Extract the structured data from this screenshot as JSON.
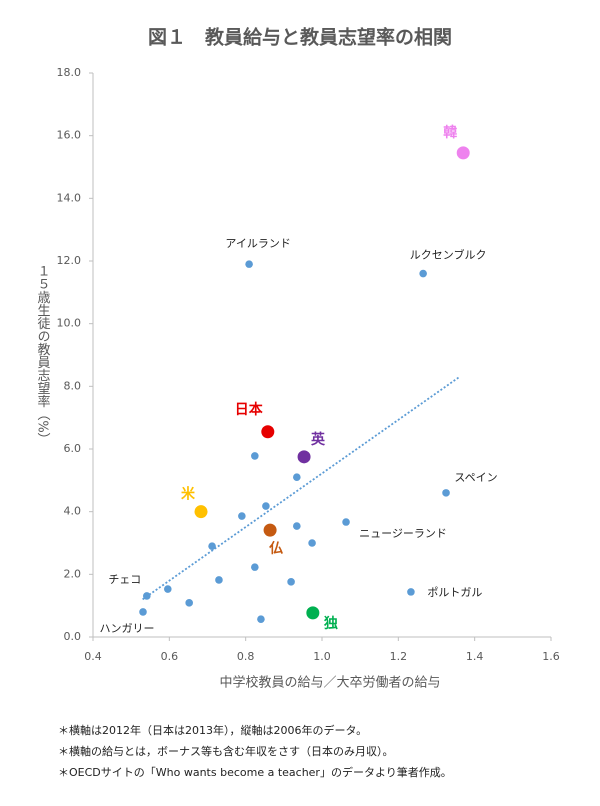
{
  "chart_data": {
    "type": "scatter",
    "title": "図１　教員給与と教員志望率の相関",
    "x_label": "中学校教員の給与／大卒労働者の給与",
    "y_label": "１５歳生徒の教員志望率（%）",
    "xlim": [
      0.4,
      1.6
    ],
    "xticks": [
      0.4,
      0.6,
      0.8,
      {
        "value": 1,
        "label": "1.0"
      },
      1.2,
      1.4,
      1.6
    ],
    "ylim": [
      0,
      18
    ],
    "yticks": [
      {
        "value": 0,
        "label": "0.0"
      },
      {
        "value": 2,
        "label": "2.0"
      },
      {
        "value": 4,
        "label": "4.0"
      },
      {
        "value": 6,
        "label": "6.0"
      },
      {
        "value": 8,
        "label": "8.0"
      },
      {
        "value": 10,
        "label": "10.0"
      },
      {
        "value": 12,
        "label": "12.0"
      },
      {
        "value": 14,
        "label": "14.0"
      },
      {
        "value": 16,
        "label": "16.0"
      },
      {
        "value": 18,
        "label": "18.0"
      }
    ],
    "grid": false,
    "color": "#5b9bd5",
    "points": [
      {
        "x": 1.37,
        "y": 15.45,
        "label": "韓",
        "color": "#ee82ee",
        "highlight": true
      },
      {
        "x": 1.265,
        "y": 11.6,
        "label": "ルクセンブルク"
      },
      {
        "x": 0.809,
        "y": 11.9,
        "label": "アイルランド"
      },
      {
        "x": 0.858,
        "y": 6.55,
        "label": "日本",
        "color": "#e60000",
        "highlight": true
      },
      {
        "x": 0.953,
        "y": 5.75,
        "label": "英",
        "color": "#7030a0",
        "highlight": true
      },
      {
        "x": 0.824,
        "y": 5.78
      },
      {
        "x": 0.934,
        "y": 5.1
      },
      {
        "x": 1.325,
        "y": 4.6,
        "label": "スペイン"
      },
      {
        "x": 0.683,
        "y": 4.0,
        "label": "米",
        "color": "#ffc000",
        "highlight": true
      },
      {
        "x": 0.853,
        "y": 4.18
      },
      {
        "x": 0.79,
        "y": 3.86
      },
      {
        "x": 1.063,
        "y": 3.67,
        "label": "ニュージーランド"
      },
      {
        "x": 0.934,
        "y": 3.54
      },
      {
        "x": 0.864,
        "y": 3.41,
        "label": "仏",
        "color": "#c55a11",
        "highlight": true
      },
      {
        "x": 0.974,
        "y": 3.0
      },
      {
        "x": 0.712,
        "y": 2.9
      },
      {
        "x": 0.824,
        "y": 2.23
      },
      {
        "x": 0.73,
        "y": 1.82
      },
      {
        "x": 0.919,
        "y": 1.76
      },
      {
        "x": 0.596,
        "y": 1.53
      },
      {
        "x": 1.233,
        "y": 1.44,
        "label": "ポルトガル"
      },
      {
        "x": 0.541,
        "y": 1.31,
        "label": "チェコ"
      },
      {
        "x": 0.652,
        "y": 1.09
      },
      {
        "x": 0.531,
        "y": 0.8,
        "label": "ハンガリー"
      },
      {
        "x": 0.84,
        "y": 0.57
      },
      {
        "x": 0.976,
        "y": 0.77,
        "label": "独",
        "color": "#00b050",
        "highlight": true
      }
    ],
    "trendline": {
      "x": [
        0.53,
        1.36
      ],
      "y": [
        1.2,
        8.3
      ],
      "color": "#5b9bd5"
    },
    "notes": [
      "＊横軸は2012年（日本は2013年），縦軸は2006年のデータ。",
      "＊横軸の給与とは，ボーナス等も含む年収をさす（日本のみ月収）。",
      "＊OECDサイトの「Who wants become a teacher」のデータより筆者作成。"
    ]
  }
}
